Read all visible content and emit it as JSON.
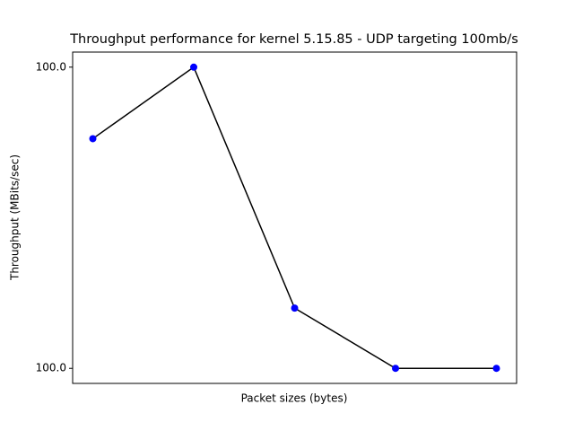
{
  "chart_data": {
    "type": "line",
    "title": "Throughput performance for kernel 5.15.85 - UDP targeting 100mb/s",
    "xlabel": "Packet sizes (bytes)",
    "ylabel": "Throughput (MBits/sec)",
    "categories": [
      null,
      null,
      null,
      null,
      null
    ],
    "series": [
      {
        "values": [
          100.021,
          100.04,
          99.976,
          99.96,
          99.96
        ],
        "color": "#000000",
        "marker_color": "#0000ff"
      }
    ],
    "ylim": [
      99.956,
      100.044
    ],
    "yticks": [
      {
        "value": 99.96,
        "label": "100.0"
      },
      {
        "value": 100.04,
        "label": "100.0"
      }
    ]
  }
}
